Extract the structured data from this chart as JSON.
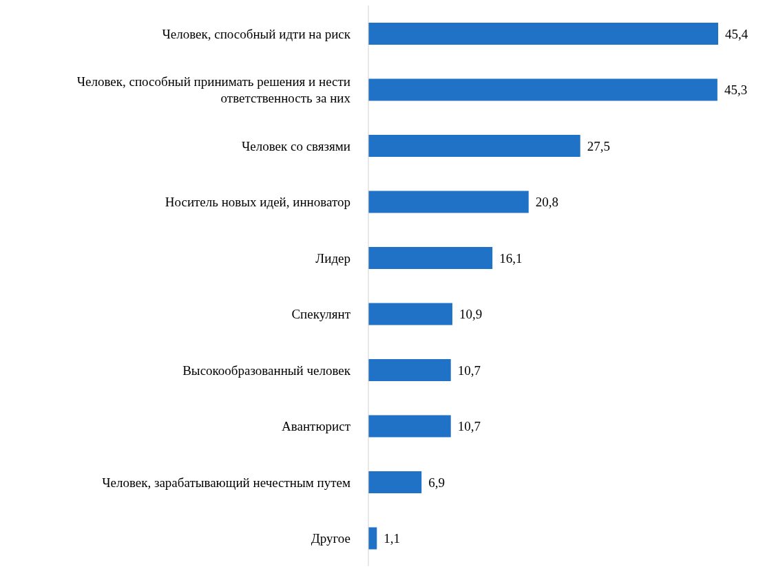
{
  "chart_data": {
    "type": "bar",
    "orientation": "horizontal",
    "categories": [
      "Человек, способный идти на риск",
      "Человек, способный принимать решения и нести ответственность за них",
      "Человек со связями",
      "Носитель новых идей, инноватор",
      "Лидер",
      "Спекулянт",
      "Высокообразованный человек",
      "Авантюрист",
      "Человек, зарабатывающий нечестным путем",
      "Другое"
    ],
    "values": [
      45.4,
      45.3,
      27.5,
      20.8,
      16.1,
      10.9,
      10.7,
      10.7,
      6.9,
      1.1
    ],
    "value_labels": [
      "45,4",
      "45,3",
      "27,5",
      "20,8",
      "16,1",
      "10,9",
      "10,7",
      "10,7",
      "6,9",
      "1,1"
    ],
    "color": "#1f72c6",
    "grid": false,
    "legend": false
  }
}
